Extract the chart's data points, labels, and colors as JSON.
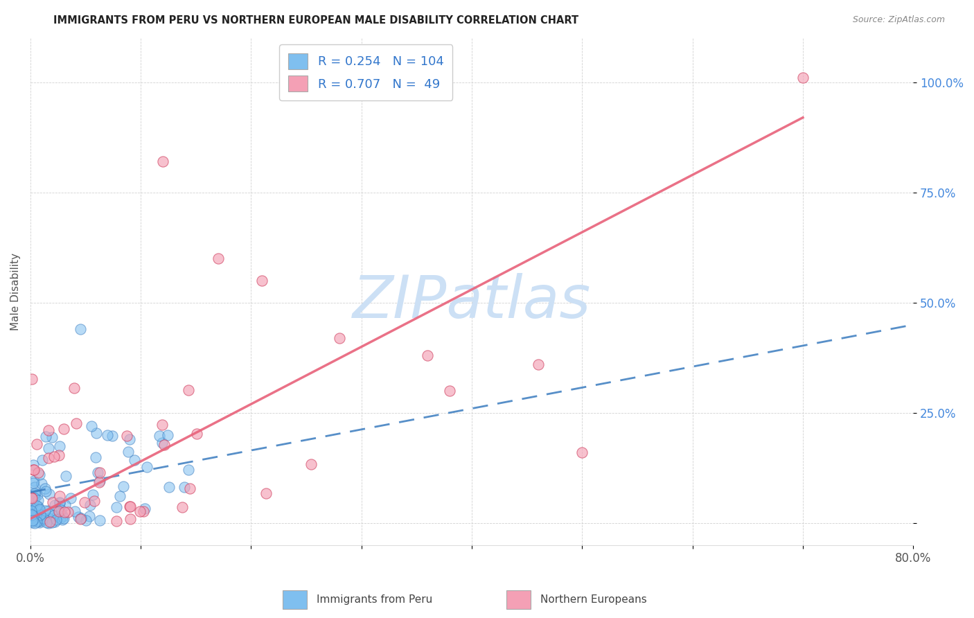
{
  "title": "IMMIGRANTS FROM PERU VS NORTHERN EUROPEAN MALE DISABILITY CORRELATION CHART",
  "source": "Source: ZipAtlas.com",
  "ylabel": "Male Disability",
  "xlim": [
    0.0,
    0.8
  ],
  "ylim": [
    -0.05,
    1.1
  ],
  "yticks": [
    0.0,
    0.25,
    0.5,
    0.75,
    1.0
  ],
  "ytick_labels": [
    "",
    "25.0%",
    "50.0%",
    "75.0%",
    "100.0%"
  ],
  "xticks": [
    0.0,
    0.1,
    0.2,
    0.3,
    0.4,
    0.5,
    0.6,
    0.7,
    0.8
  ],
  "xtick_labels": [
    "0.0%",
    "",
    "",
    "",
    "",
    "",
    "",
    "",
    "80.0%"
  ],
  "blue_R": 0.254,
  "blue_N": 104,
  "pink_R": 0.707,
  "pink_N": 49,
  "blue_color": "#7fbfef",
  "pink_color": "#f4a0b5",
  "blue_line_color": "#3a7bbf",
  "pink_line_color": "#e8627a",
  "watermark": "ZIPatlas",
  "watermark_color": "#cce0f5",
  "blue_trend_x0": 0.0,
  "blue_trend_y0": 0.07,
  "blue_trend_x1": 0.8,
  "blue_trend_y1": 0.45,
  "pink_trend_x0": 0.0,
  "pink_trend_y0": 0.01,
  "pink_trend_x1": 0.7,
  "pink_trend_y1": 0.92
}
